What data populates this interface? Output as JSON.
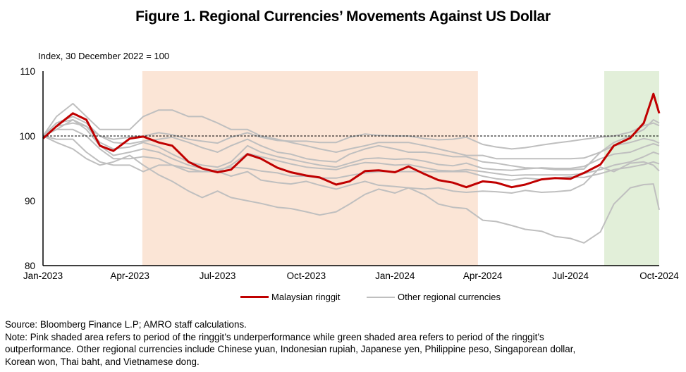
{
  "chart_data": {
    "type": "line",
    "title": "Figure 1. Regional Currencies’ Movements Against US Dollar",
    "ylabel": "Index, 30 December 2022 = 100",
    "xlabel": "",
    "ylim": [
      80,
      110
    ],
    "yticks": [
      80,
      90,
      100,
      110
    ],
    "xlim": [
      "2023-01-01",
      "2024-10-01"
    ],
    "xticks": [
      {
        "date": "2023-01-01",
        "label": "Jan-2023"
      },
      {
        "date": "2023-04-01",
        "label": "Apr-2023"
      },
      {
        "date": "2023-07-01",
        "label": "Jul-2023"
      },
      {
        "date": "2023-10-01",
        "label": "Oct-2023"
      },
      {
        "date": "2024-01-01",
        "label": "Jan-2024"
      },
      {
        "date": "2024-04-01",
        "label": "Apr-2024"
      },
      {
        "date": "2024-07-01",
        "label": "Jul-2024"
      },
      {
        "date": "2024-10-01",
        "label": "Oct-2024"
      }
    ],
    "reference_line": {
      "y": 100,
      "style": "dashed",
      "color": "#000000"
    },
    "shaded_periods": [
      {
        "name": "ringgit-underperformance",
        "start": "2023-04-14",
        "end": "2024-03-27",
        "color": "#fbe5d6"
      },
      {
        "name": "ringgit-outperformance",
        "start": "2024-08-05",
        "end": "2024-10-01",
        "color": "#e2efd9"
      }
    ],
    "legend": {
      "placement": "bottom-center",
      "entries": [
        {
          "label": "Malaysian ringgit",
          "color": "#c00000"
        },
        {
          "label": "Other regional currencies",
          "color": "#bfbfbf"
        }
      ]
    },
    "x": [
      "2023-01-01",
      "2023-01-15",
      "2023-02-01",
      "2023-02-15",
      "2023-03-01",
      "2023-03-15",
      "2023-04-01",
      "2023-04-15",
      "2023-05-01",
      "2023-05-15",
      "2023-06-01",
      "2023-06-15",
      "2023-07-01",
      "2023-07-15",
      "2023-08-01",
      "2023-08-15",
      "2023-09-01",
      "2023-09-15",
      "2023-10-01",
      "2023-10-15",
      "2023-11-01",
      "2023-11-15",
      "2023-12-01",
      "2023-12-15",
      "2024-01-01",
      "2024-01-15",
      "2024-02-01",
      "2024-02-15",
      "2024-03-01",
      "2024-03-15",
      "2024-04-01",
      "2024-04-15",
      "2024-05-01",
      "2024-05-15",
      "2024-06-01",
      "2024-06-15",
      "2024-07-01",
      "2024-07-15",
      "2024-08-01",
      "2024-08-15",
      "2024-09-01",
      "2024-09-15",
      "2024-09-25",
      "2024-10-01"
    ],
    "series": [
      {
        "name": "Malaysian ringgit",
        "color": "#c00000",
        "values": [
          99.6,
          101.5,
          103.5,
          102.5,
          98.5,
          97.7,
          99.6,
          99.9,
          99.0,
          98.5,
          96.0,
          95.0,
          94.4,
          94.8,
          97.2,
          96.5,
          95.1,
          94.4,
          93.9,
          93.6,
          92.5,
          93.0,
          94.6,
          94.7,
          94.4,
          95.3,
          94.1,
          93.2,
          92.8,
          92.1,
          93.0,
          92.8,
          92.1,
          92.5,
          93.3,
          93.5,
          93.4,
          94.3,
          95.6,
          98.5,
          99.7,
          102.0,
          106.5,
          103.5
        ]
      },
      {
        "name": "Other regional currencies",
        "color": "#bfbfbf",
        "note": "eight unlabeled currencies; the figure does not identify individual lines",
        "values_by_line": [
          [
            100,
            103,
            105,
            103,
            101,
            101,
            101,
            103,
            104,
            104,
            103,
            103,
            102,
            101,
            101,
            100,
            99.5,
            99,
            98.5,
            98,
            97.5,
            98,
            98.5,
            99,
            99,
            99,
            98.5,
            98,
            97.5,
            97,
            97,
            96.5,
            96.5,
            96.5,
            96.5,
            96.5,
            96.5,
            96.6,
            97.5,
            99,
            100,
            101,
            102.5,
            102
          ],
          [
            100,
            101.5,
            102,
            101.5,
            100,
            99.5,
            99.8,
            100,
            100.5,
            100.2,
            99.5,
            99.2,
            98.9,
            99.8,
            100.5,
            99.8,
            99.3,
            99.2,
            99.2,
            99.0,
            99.0,
            99.8,
            100.3,
            100.1,
            100,
            100,
            99.6,
            99.4,
            99.5,
            99.8,
            98.7,
            98.3,
            98.0,
            98.2,
            98.6,
            98.9,
            99.2,
            99.5,
            99.8,
            100,
            100.6,
            101.6,
            102.0,
            101.6
          ],
          [
            100,
            102,
            103,
            102,
            100,
            99,
            98.8,
            99.2,
            99.5,
            99.8,
            99,
            98.2,
            97.5,
            98.5,
            99.5,
            98.5,
            97.5,
            97.2,
            96.5,
            96.2,
            96.0,
            97.2,
            98.0,
            98.5,
            98,
            97.5,
            97.5,
            97.2,
            96.8,
            96.8,
            96.0,
            95.8,
            95.4,
            95.1,
            95.0,
            94.8,
            94.8,
            94.9,
            97.5,
            98.5,
            99.0,
            99.6,
            99.3,
            98.9
          ],
          [
            100,
            102,
            102.5,
            101.5,
            99,
            98,
            98.3,
            99,
            98.3,
            97.2,
            96,
            95.5,
            95.2,
            96.0,
            98.5,
            97.5,
            96.8,
            96.4,
            95.9,
            95.5,
            95.2,
            95.8,
            96.5,
            96.6,
            96.4,
            96.5,
            96.1,
            95.6,
            95.4,
            95.8,
            95.0,
            94.8,
            94.7,
            94.9,
            95.1,
            95.0,
            95.0,
            95.3,
            96.5,
            97.2,
            97.5,
            98.3,
            98.8,
            98.5
          ],
          [
            100,
            101,
            102.5,
            101,
            98.5,
            97,
            97.5,
            98,
            97.5,
            96.5,
            95.5,
            95,
            94.5,
            95.5,
            97.3,
            96.8,
            96.2,
            95.7,
            95.2,
            95.0,
            94.8,
            95.4,
            95.9,
            95.8,
            95.5,
            95.6,
            95.1,
            94.7,
            94.6,
            94.8,
            94.5,
            94.2,
            93.9,
            94.0,
            94.0,
            94.0,
            94.0,
            94.2,
            94.8,
            95.5,
            96.0,
            96.8,
            97.5,
            97.2
          ],
          [
            100,
            101,
            101,
            100,
            98,
            96.5,
            96.5,
            96.8,
            96.5,
            95.5,
            94.5,
            94.5,
            94.8,
            95.2,
            95.0,
            94.6,
            94.3,
            93.8,
            93.8,
            93.5,
            93.5,
            93.9,
            94.3,
            94.5,
            94.5,
            94.5,
            94.5,
            94.5,
            94.5,
            94.5,
            93.8,
            93.4,
            93.2,
            93.5,
            93.3,
            93.5,
            93.7,
            93.6,
            94.2,
            94.8,
            95.2,
            95.6,
            96.0,
            95.7
          ],
          [
            100,
            99.5,
            99.5,
            97.5,
            96,
            95.5,
            95.5,
            94.5,
            95.5,
            95.5,
            95,
            94.5,
            94.5,
            93.8,
            94.5,
            93.2,
            92.8,
            92.6,
            93.0,
            92.4,
            91.8,
            92.4,
            93.0,
            92.4,
            92.2,
            92.0,
            91.8,
            92.0,
            91.5,
            91.3,
            91.5,
            91.4,
            91.2,
            91.6,
            91.3,
            91.4,
            91.6,
            92.6,
            95.2,
            94.5,
            95.8,
            96.0,
            95.5,
            94.6
          ],
          [
            100,
            99,
            98,
            96.5,
            95.5,
            96,
            97,
            95.5,
            94,
            93,
            91.5,
            90.5,
            91.5,
            90.5,
            90.0,
            89.6,
            89.0,
            88.8,
            88.3,
            87.8,
            88.3,
            89.5,
            91.0,
            91.8,
            91.2,
            92.0,
            90.9,
            89.5,
            89.0,
            88.8,
            87.0,
            86.8,
            86.2,
            85.6,
            85.3,
            84.5,
            84.2,
            83.5,
            85.2,
            89.5,
            92.0,
            92.5,
            92.6,
            88.6
          ]
        ]
      }
    ]
  },
  "notes": {
    "source": "Source: Bloomberg Finance L.P; AMRO staff calculations.",
    "note_line1": "Note: Pink shaded area refers to period of the ringgit’s underperformance while green shaded area refers to period of the ringgit’s",
    "note_line2": "outperformance. Other regional currencies include Chinese yuan, Indonesian rupiah, Japanese yen, Philippine peso, Singaporean dollar,",
    "note_line3": "Korean won, Thai baht, and Vietnamese dong."
  }
}
